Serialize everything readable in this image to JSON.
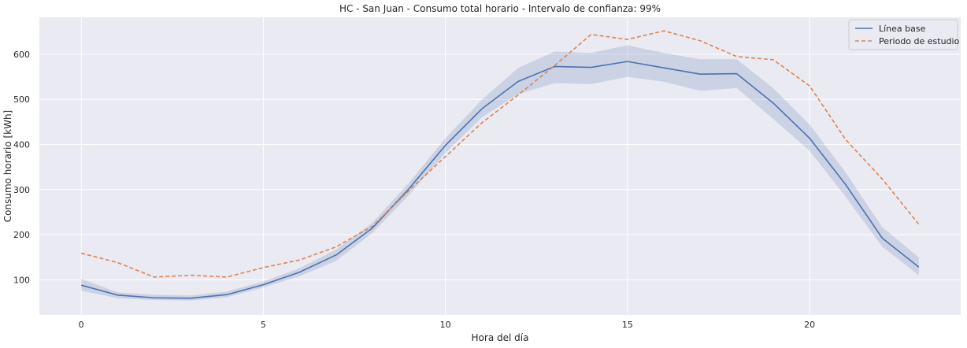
{
  "chart_data": {
    "type": "line",
    "title": "HC - San Juan - Consumo total horario - Intervalo de confianza: 99%",
    "xlabel": "Hora del día",
    "ylabel": "Consumo horario [kWh]",
    "x": [
      0,
      1,
      2,
      3,
      4,
      5,
      6,
      7,
      8,
      9,
      10,
      11,
      12,
      13,
      14,
      15,
      16,
      17,
      18,
      19,
      20,
      21,
      22,
      23
    ],
    "xlim": [
      -1.15,
      24.15
    ],
    "ylim": [
      22,
      682
    ],
    "xticks": [
      0,
      5,
      10,
      15,
      20
    ],
    "yticks": [
      100,
      200,
      300,
      400,
      500,
      600
    ],
    "grid": true,
    "legend_position": "top-right",
    "series": [
      {
        "name": "Línea base",
        "style": "solid",
        "color": "#4c72b0",
        "values": [
          88,
          66,
          60,
          59,
          67,
          89,
          117,
          155,
          215,
          302,
          398,
          479,
          540,
          573,
          571,
          584,
          570,
          556,
          557,
          492,
          414,
          310,
          192,
          128
        ],
        "ci_lower": [
          76,
          59,
          55,
          54,
          61,
          83,
          108,
          142,
          204,
          288,
          381,
          460,
          512,
          536,
          534,
          550,
          539,
          519,
          525,
          457,
          386,
          283,
          173,
          110
        ],
        "ci_upper": [
          102,
          72,
          67,
          65,
          74,
          96,
          126,
          167,
          227,
          315,
          414,
          499,
          570,
          606,
          603,
          620,
          603,
          589,
          589,
          525,
          444,
          337,
          216,
          150
        ]
      },
      {
        "name": "Periodo de estudio",
        "style": "dashed",
        "color": "#dd8452",
        "values": [
          159,
          138,
          106,
          110,
          106,
          127,
          144,
          173,
          219,
          298,
          373,
          448,
          510,
          575,
          644,
          633,
          652,
          630,
          595,
          588,
          530,
          410,
          323,
          223
        ]
      }
    ]
  }
}
